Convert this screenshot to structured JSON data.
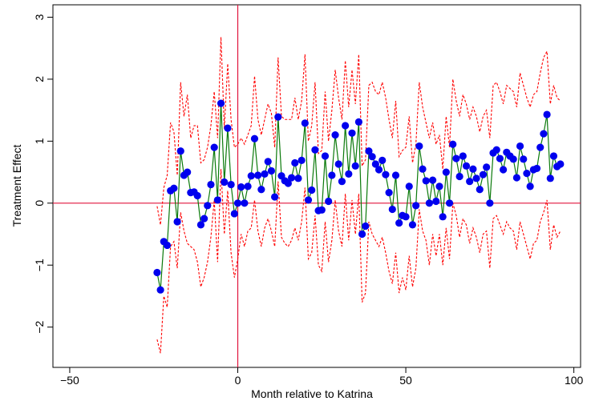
{
  "chart_data": {
    "type": "line",
    "title": "",
    "xlabel": "Month relative to Katrina",
    "ylabel": "Treatment Effect",
    "xlim": [
      -55,
      102
    ],
    "ylim": [
      -2.65,
      3.2
    ],
    "xticks": [
      -50,
      0,
      50,
      100
    ],
    "xtick_labels": [
      "−50",
      "0",
      "50",
      "100"
    ],
    "yticks": [
      -2,
      -1,
      0,
      1,
      2,
      3
    ],
    "ytick_labels": [
      "−2",
      "−1",
      "0",
      "1",
      "2",
      "3"
    ],
    "grid": false,
    "legend": "none",
    "reference_lines": {
      "x": 0,
      "y": 0,
      "color": "#e0143c"
    },
    "colors": {
      "estimate_line": "#0b7a0b",
      "estimate_points": "#0000ee",
      "ci": "#ff0000",
      "reference": "#e0143c"
    },
    "x": [
      -24,
      -23,
      -22,
      -21,
      -20,
      -19,
      -18,
      -17,
      -16,
      -15,
      -14,
      -13,
      -12,
      -11,
      -10,
      -9,
      -8,
      -7,
      -6,
      -5,
      -4,
      -3,
      -2,
      -1,
      0,
      1,
      2,
      3,
      4,
      5,
      6,
      7,
      8,
      9,
      10,
      11,
      12,
      13,
      14,
      15,
      16,
      17,
      18,
      19,
      20,
      21,
      22,
      23,
      24,
      25,
      26,
      27,
      28,
      29,
      30,
      31,
      32,
      33,
      34,
      35,
      36,
      37,
      38,
      39,
      40,
      41,
      42,
      43,
      44,
      45,
      46,
      47,
      48,
      49,
      50,
      51,
      52,
      53,
      54,
      55,
      56,
      57,
      58,
      59,
      60,
      61,
      62,
      63,
      64,
      65,
      66,
      67,
      68,
      69,
      70,
      71,
      72,
      73,
      74,
      75,
      76,
      77,
      78,
      79,
      80,
      81,
      82,
      83,
      84,
      85,
      86,
      87,
      88,
      89,
      90,
      91,
      92,
      93,
      94,
      95,
      96
    ],
    "series": [
      {
        "values": [
          -1.12,
          -1.4,
          -0.62,
          -0.68,
          0.2,
          0.24,
          -0.3,
          0.84,
          0.45,
          0.5,
          0.17,
          0.18,
          0.12,
          -0.35,
          -0.25,
          -0.04,
          0.3,
          0.9,
          0.05,
          1.61,
          0.34,
          1.21,
          0.3,
          -0.17,
          0.0,
          0.26,
          0.0,
          0.27,
          0.44,
          1.04,
          0.45,
          0.22,
          0.47,
          0.67,
          0.52,
          0.1,
          1.39,
          0.44,
          0.36,
          0.32,
          0.41,
          0.65,
          0.4,
          0.69,
          1.29,
          0.05,
          0.21,
          0.86,
          -0.12,
          -0.11,
          0.76,
          0.03,
          0.45,
          1.1,
          0.63,
          0.35,
          1.25,
          0.47,
          1.13,
          0.6,
          1.31,
          -0.5,
          -0.37,
          0.84,
          0.75,
          0.63,
          0.54,
          0.69,
          0.46,
          0.17,
          -0.1,
          0.45,
          -0.32,
          -0.2,
          -0.22,
          0.27,
          -0.35,
          -0.04,
          0.92,
          0.55,
          0.36,
          0.0,
          0.37,
          0.03,
          0.27,
          -0.22,
          0.5,
          0.0,
          0.95,
          0.72,
          0.43,
          0.76,
          0.6,
          0.35,
          0.55,
          0.4,
          0.22,
          0.46,
          0.58,
          0.0,
          0.81,
          0.86,
          0.72,
          0.54,
          0.82,
          0.76,
          0.71,
          0.41,
          0.92,
          0.71,
          0.48,
          0.27,
          0.54,
          0.56,
          0.9,
          1.12,
          1.43,
          0.4,
          0.76,
          0.59,
          0.63
        ]
      },
      {
        "values": [
          -2.2,
          -2.42,
          -1.5,
          -1.68,
          -0.7,
          -0.62,
          -1.05,
          -0.15,
          -0.45,
          -0.65,
          -0.7,
          -0.75,
          -0.95,
          -1.35,
          -1.2,
          -0.95,
          -0.55,
          0.05,
          -0.95,
          0.55,
          -0.5,
          0.2,
          -0.8,
          -1.2,
          -0.9,
          -0.5,
          -0.7,
          -0.45,
          -0.4,
          0.05,
          -0.45,
          -0.7,
          -0.4,
          -0.25,
          -0.45,
          -0.7,
          0.35,
          -0.55,
          -0.65,
          -0.7,
          -0.6,
          -0.4,
          -0.6,
          -0.3,
          0.25,
          -0.9,
          -0.8,
          -0.2,
          -1.0,
          -1.1,
          -0.3,
          -0.95,
          -0.6,
          0.05,
          -0.45,
          -0.7,
          0.15,
          -0.6,
          0.05,
          -0.5,
          0.15,
          -1.6,
          -1.45,
          -0.3,
          -0.5,
          -0.6,
          -0.7,
          -0.55,
          -0.8,
          -1.1,
          -1.3,
          -0.8,
          -1.45,
          -1.2,
          -1.4,
          -0.85,
          -1.35,
          -1.05,
          -0.1,
          -0.45,
          -0.6,
          -1.0,
          -0.5,
          -0.85,
          -0.5,
          -1.0,
          -0.4,
          -0.9,
          0.0,
          -0.2,
          -0.55,
          -0.25,
          -0.35,
          -0.65,
          -0.4,
          -0.55,
          -0.8,
          -0.5,
          -0.45,
          -1.05,
          -0.25,
          -0.2,
          -0.35,
          -0.5,
          -0.3,
          -0.4,
          -0.45,
          -0.75,
          -0.3,
          -0.5,
          -0.7,
          -0.9,
          -0.65,
          -0.6,
          -0.3,
          -0.15,
          0.05,
          -0.75,
          -0.35,
          -0.55,
          -0.45
        ]
      },
      {
        "values": [
          -0.05,
          -0.35,
          0.25,
          0.45,
          1.3,
          1.15,
          0.45,
          1.95,
          1.4,
          1.75,
          1.05,
          1.25,
          1.25,
          0.65,
          0.7,
          0.9,
          1.25,
          1.8,
          1.05,
          2.68,
          1.2,
          2.25,
          1.35,
          0.9,
          0.95,
          1.05,
          0.95,
          1.1,
          1.25,
          2.05,
          1.35,
          1.1,
          1.35,
          1.6,
          1.45,
          0.9,
          2.35,
          1.4,
          1.35,
          1.35,
          1.35,
          1.7,
          1.35,
          1.65,
          2.4,
          1.0,
          1.25,
          1.95,
          0.8,
          0.85,
          1.8,
          1.0,
          1.5,
          2.15,
          1.7,
          1.35,
          2.3,
          1.55,
          2.15,
          1.6,
          2.4,
          0.6,
          0.7,
          1.9,
          1.95,
          1.8,
          1.75,
          1.95,
          1.7,
          1.35,
          1.05,
          1.65,
          0.75,
          0.85,
          0.9,
          1.4,
          0.65,
          0.95,
          1.95,
          1.55,
          1.3,
          1.05,
          1.3,
          0.95,
          1.1,
          0.55,
          1.4,
          0.9,
          2.0,
          1.65,
          1.4,
          1.75,
          1.6,
          1.35,
          1.55,
          1.4,
          1.15,
          1.4,
          1.5,
          1.05,
          1.9,
          1.95,
          1.8,
          1.6,
          1.9,
          1.85,
          1.8,
          1.55,
          2.1,
          1.9,
          1.7,
          1.55,
          1.75,
          1.8,
          2.1,
          2.35,
          2.45,
          1.6,
          1.9,
          1.7,
          1.65
        ]
      },
      {
        "values": [
          null,
          null,
          null,
          null,
          null,
          null,
          null,
          null,
          null,
          null,
          null,
          null,
          null,
          null,
          null,
          null,
          null,
          null,
          null,
          null,
          null,
          null,
          null,
          null,
          null,
          null,
          null,
          null,
          null,
          null,
          null,
          null,
          null,
          null,
          null,
          null,
          null,
          null,
          null,
          null,
          null,
          null,
          null,
          null,
          null,
          null,
          null,
          null,
          null,
          null,
          null,
          null,
          null,
          null,
          null,
          null,
          null,
          null,
          null,
          null,
          null,
          null,
          null,
          null,
          null,
          null,
          null,
          null,
          null,
          null,
          null,
          null,
          null,
          null,
          null,
          null,
          null,
          null,
          null,
          null,
          null,
          null,
          null,
          null,
          null,
          null,
          null,
          null,
          null,
          null,
          null,
          null,
          null,
          null,
          null,
          null,
          null,
          null,
          null,
          null,
          null,
          null,
          null,
          null,
          null,
          null,
          null,
          null,
          null,
          null,
          null,
          null,
          null,
          null,
          null,
          null,
          null,
          null,
          null,
          null,
          null
        ]
      }
    ]
  }
}
